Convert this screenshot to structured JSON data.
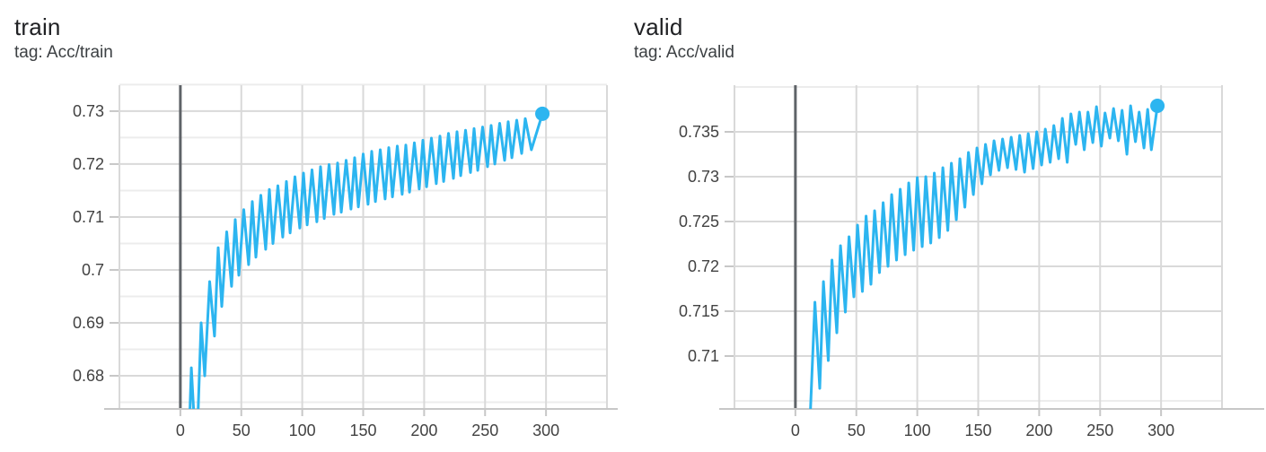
{
  "page": {
    "background": "#ffffff"
  },
  "colors": {
    "series_line": "#2cb5f0",
    "zero_line": "#5f6368",
    "grid_major": "#d9d9d9",
    "grid_minor": "#ececec",
    "axis_line": "#c7c7c7",
    "tick_text": "#424242",
    "title_text": "#202124"
  },
  "chart_data": [
    {
      "type": "line",
      "title": "train",
      "tag": "tag: Acc/train",
      "series_name": "Acc/train",
      "color": "#2cb5f0",
      "legend_position": "none",
      "grid": true,
      "x_axis": {
        "range": [
          -50,
          350
        ],
        "label_ticks": [
          {
            "v": 0,
            "label": "0"
          },
          {
            "v": 50,
            "label": "50"
          },
          {
            "v": 100,
            "label": "100"
          },
          {
            "v": 150,
            "label": "150"
          },
          {
            "v": 200,
            "label": "200"
          },
          {
            "v": 250,
            "label": "250"
          },
          {
            "v": 300,
            "label": "300"
          }
        ],
        "grid_ticks": [
          -50,
          50,
          100,
          150,
          200,
          250,
          300,
          350
        ],
        "zero_line": 0
      },
      "y_axis": {
        "range": [
          0.6739,
          0.7349
        ],
        "label_ticks": [
          {
            "v": 0.68,
            "label": "0.68"
          },
          {
            "v": 0.69,
            "label": "0.69"
          },
          {
            "v": 0.7,
            "label": "0.7"
          },
          {
            "v": 0.71,
            "label": "0.71"
          },
          {
            "v": 0.72,
            "label": "0.72"
          },
          {
            "v": 0.73,
            "label": "0.73"
          }
        ],
        "minor_grid": [
          0.675,
          0.685,
          0.695,
          0.705,
          0.715,
          0.725,
          0.735
        ]
      },
      "final_point": {
        "step": 297,
        "value": 0.7295,
        "marker": true
      },
      "points": [
        [
          6.5,
          0.664
        ],
        [
          9,
          0.6815
        ],
        [
          11,
          0.673
        ],
        [
          13,
          0.6625
        ],
        [
          17,
          0.69
        ],
        [
          20,
          0.68
        ],
        [
          24,
          0.6978
        ],
        [
          28,
          0.6875
        ],
        [
          31,
          0.7042
        ],
        [
          34,
          0.6931
        ],
        [
          38,
          0.7072
        ],
        [
          42,
          0.6969
        ],
        [
          45,
          0.7095
        ],
        [
          48,
          0.699
        ],
        [
          52,
          0.7114
        ],
        [
          56,
          0.701
        ],
        [
          59,
          0.7129
        ],
        [
          62,
          0.7024
        ],
        [
          66,
          0.7141
        ],
        [
          70,
          0.7039
        ],
        [
          73,
          0.7152
        ],
        [
          76,
          0.705
        ],
        [
          80,
          0.7159
        ],
        [
          84,
          0.7062
        ],
        [
          87,
          0.7167
        ],
        [
          90,
          0.707
        ],
        [
          94,
          0.7176
        ],
        [
          98,
          0.7079
        ],
        [
          101,
          0.7183
        ],
        [
          104,
          0.7085
        ],
        [
          108,
          0.7189
        ],
        [
          112,
          0.7091
        ],
        [
          115,
          0.7195
        ],
        [
          118,
          0.7097
        ],
        [
          122,
          0.7199
        ],
        [
          126,
          0.7105
        ],
        [
          129,
          0.7202
        ],
        [
          132,
          0.7109
        ],
        [
          136,
          0.7207
        ],
        [
          140,
          0.7115
        ],
        [
          143,
          0.7212
        ],
        [
          146,
          0.7119
        ],
        [
          150,
          0.7219
        ],
        [
          154,
          0.7124
        ],
        [
          157,
          0.7224
        ],
        [
          160,
          0.7129
        ],
        [
          164,
          0.7227
        ],
        [
          168,
          0.7134
        ],
        [
          171,
          0.7231
        ],
        [
          174,
          0.7138
        ],
        [
          178,
          0.7234
        ],
        [
          182,
          0.7143
        ],
        [
          185,
          0.7236
        ],
        [
          188,
          0.7147
        ],
        [
          192,
          0.724
        ],
        [
          196,
          0.7153
        ],
        [
          199,
          0.7245
        ],
        [
          202,
          0.7157
        ],
        [
          206,
          0.7249
        ],
        [
          210,
          0.7163
        ],
        [
          213,
          0.7253
        ],
        [
          216,
          0.7167
        ],
        [
          220,
          0.7258
        ],
        [
          224,
          0.7173
        ],
        [
          227,
          0.7261
        ],
        [
          230,
          0.7178
        ],
        [
          234,
          0.7264
        ],
        [
          238,
          0.7184
        ],
        [
          241,
          0.7267
        ],
        [
          244,
          0.7188
        ],
        [
          248,
          0.727
        ],
        [
          252,
          0.7195
        ],
        [
          255,
          0.7273
        ],
        [
          258,
          0.72
        ],
        [
          262,
          0.7277
        ],
        [
          266,
          0.7207
        ],
        [
          269,
          0.728
        ],
        [
          272,
          0.7212
        ],
        [
          276,
          0.7283
        ],
        [
          280,
          0.722
        ],
        [
          283,
          0.7286
        ],
        [
          288,
          0.7227
        ],
        [
          297,
          0.7295
        ]
      ]
    },
    {
      "type": "line",
      "title": "valid",
      "tag": "tag: Acc/valid",
      "series_name": "Acc/valid",
      "color": "#2cb5f0",
      "legend_position": "none",
      "grid": true,
      "x_axis": {
        "range": [
          -50,
          350
        ],
        "label_ticks": [
          {
            "v": 0,
            "label": "0"
          },
          {
            "v": 50,
            "label": "50"
          },
          {
            "v": 100,
            "label": "100"
          },
          {
            "v": 150,
            "label": "150"
          },
          {
            "v": 200,
            "label": "200"
          },
          {
            "v": 250,
            "label": "250"
          },
          {
            "v": 300,
            "label": "300"
          }
        ],
        "grid_ticks": [
          -50,
          50,
          100,
          150,
          200,
          250,
          300,
          350
        ],
        "zero_line": 0
      },
      "y_axis": {
        "range": [
          0.7042,
          0.7402
        ],
        "label_ticks": [
          {
            "v": 0.71,
            "label": "0.71"
          },
          {
            "v": 0.715,
            "label": "0.715"
          },
          {
            "v": 0.72,
            "label": "0.72"
          },
          {
            "v": 0.725,
            "label": "0.725"
          },
          {
            "v": 0.73,
            "label": "0.73"
          },
          {
            "v": 0.735,
            "label": "0.735"
          }
        ],
        "minor_grid": [
          0.705,
          0.74
        ]
      },
      "final_point": {
        "step": 297,
        "value": 0.7379,
        "marker": true
      },
      "points": [
        [
          11,
          0.6995
        ],
        [
          16,
          0.716
        ],
        [
          20,
          0.7064
        ],
        [
          23,
          0.7183
        ],
        [
          27,
          0.7095
        ],
        [
          30,
          0.7207
        ],
        [
          34,
          0.7126
        ],
        [
          37,
          0.7223
        ],
        [
          41,
          0.7149
        ],
        [
          44,
          0.7233
        ],
        [
          48,
          0.7166
        ],
        [
          51,
          0.7246
        ],
        [
          55,
          0.7172
        ],
        [
          58,
          0.7256
        ],
        [
          62,
          0.718
        ],
        [
          65,
          0.7262
        ],
        [
          69,
          0.7193
        ],
        [
          72,
          0.7271
        ],
        [
          76,
          0.72
        ],
        [
          79,
          0.728
        ],
        [
          83,
          0.7207
        ],
        [
          86,
          0.7286
        ],
        [
          90,
          0.7213
        ],
        [
          93,
          0.7293
        ],
        [
          97,
          0.7218
        ],
        [
          100,
          0.7299
        ],
        [
          104,
          0.7222
        ],
        [
          107,
          0.73
        ],
        [
          111,
          0.7226
        ],
        [
          114,
          0.7304
        ],
        [
          118,
          0.7232
        ],
        [
          121,
          0.731
        ],
        [
          125,
          0.724
        ],
        [
          128,
          0.7315
        ],
        [
          132,
          0.7252
        ],
        [
          135,
          0.732
        ],
        [
          139,
          0.7266
        ],
        [
          142,
          0.7327
        ],
        [
          146,
          0.728
        ],
        [
          149,
          0.7332
        ],
        [
          153,
          0.7292
        ],
        [
          156,
          0.7336
        ],
        [
          160,
          0.7302
        ],
        [
          163,
          0.734
        ],
        [
          167,
          0.7307
        ],
        [
          170,
          0.7342
        ],
        [
          174,
          0.731
        ],
        [
          177,
          0.7344
        ],
        [
          181,
          0.7308
        ],
        [
          184,
          0.7346
        ],
        [
          188,
          0.7305
        ],
        [
          191,
          0.7348
        ],
        [
          195,
          0.7309
        ],
        [
          198,
          0.735
        ],
        [
          202,
          0.7313
        ],
        [
          205,
          0.7353
        ],
        [
          209,
          0.7316
        ],
        [
          212,
          0.7357
        ],
        [
          216,
          0.732
        ],
        [
          219,
          0.7365
        ],
        [
          223,
          0.7316
        ],
        [
          226,
          0.737
        ],
        [
          230,
          0.7336
        ],
        [
          233,
          0.7372
        ],
        [
          237,
          0.733
        ],
        [
          240,
          0.7372
        ],
        [
          244,
          0.7338
        ],
        [
          247,
          0.7378
        ],
        [
          251,
          0.7334
        ],
        [
          254,
          0.7371
        ],
        [
          258,
          0.7343
        ],
        [
          261,
          0.7376
        ],
        [
          265,
          0.734
        ],
        [
          268,
          0.7374
        ],
        [
          272,
          0.7325
        ],
        [
          275,
          0.7379
        ],
        [
          279,
          0.7339
        ],
        [
          282,
          0.7372
        ],
        [
          286,
          0.7332
        ],
        [
          289,
          0.7375
        ],
        [
          292,
          0.733
        ],
        [
          297,
          0.7379
        ]
      ]
    }
  ]
}
